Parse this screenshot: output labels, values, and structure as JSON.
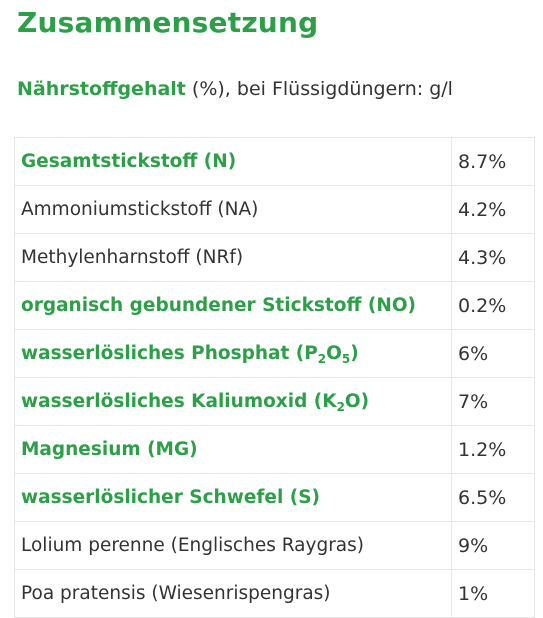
{
  "heading": "Zusammensetzung",
  "subtitle": {
    "bold": "Nährstoffgehalt",
    "rest": " (%), bei Flüssigdüngern: g/l"
  },
  "rows": [
    {
      "name": "Gesamtstickstoff (N)",
      "value": "8.7%",
      "bold": true
    },
    {
      "name": "Ammoniumstickstoff (NA)",
      "value": "4.2%",
      "bold": false
    },
    {
      "name": "Methylenharnstoff (NRf)",
      "value": "4.3%",
      "bold": false
    },
    {
      "name": "organisch gebundener Stickstoff (NO)",
      "value": "0.2%",
      "bold": true
    },
    {
      "name_parts": [
        "wasserlösliches Phosphat (P",
        "2",
        "O",
        "5",
        ")"
      ],
      "value": "6%",
      "bold": true
    },
    {
      "name_parts": [
        "wasserlösliches Kaliumoxid (K",
        "2",
        "O)"
      ],
      "value": "7%",
      "bold": true
    },
    {
      "name": "Magnesium (MG)",
      "value": "1.2%",
      "bold": true
    },
    {
      "name": "wasserlöslicher Schwefel (S)",
      "value": "6.5%",
      "bold": true
    },
    {
      "name": "Lolium perenne (Englisches Raygras)",
      "value": "9%",
      "bold": false
    },
    {
      "name": "Poa pratensis (Wiesenrispengras)",
      "value": "1%",
      "bold": false
    }
  ],
  "colors": {
    "accent": "#2e9f49",
    "text": "#333333",
    "border": "#e6e6e6"
  }
}
